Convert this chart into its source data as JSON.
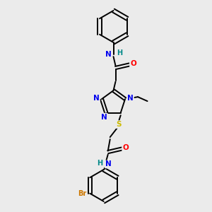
{
  "background_color": "#ebebeb",
  "colors": {
    "C": "#000000",
    "N": "#0000ee",
    "O": "#ff0000",
    "S": "#ccbb00",
    "Br": "#cc7700",
    "H": "#008888",
    "bond": "#000000"
  },
  "layout": {
    "xlim": [
      0,
      1
    ],
    "ylim": [
      0,
      1
    ]
  }
}
